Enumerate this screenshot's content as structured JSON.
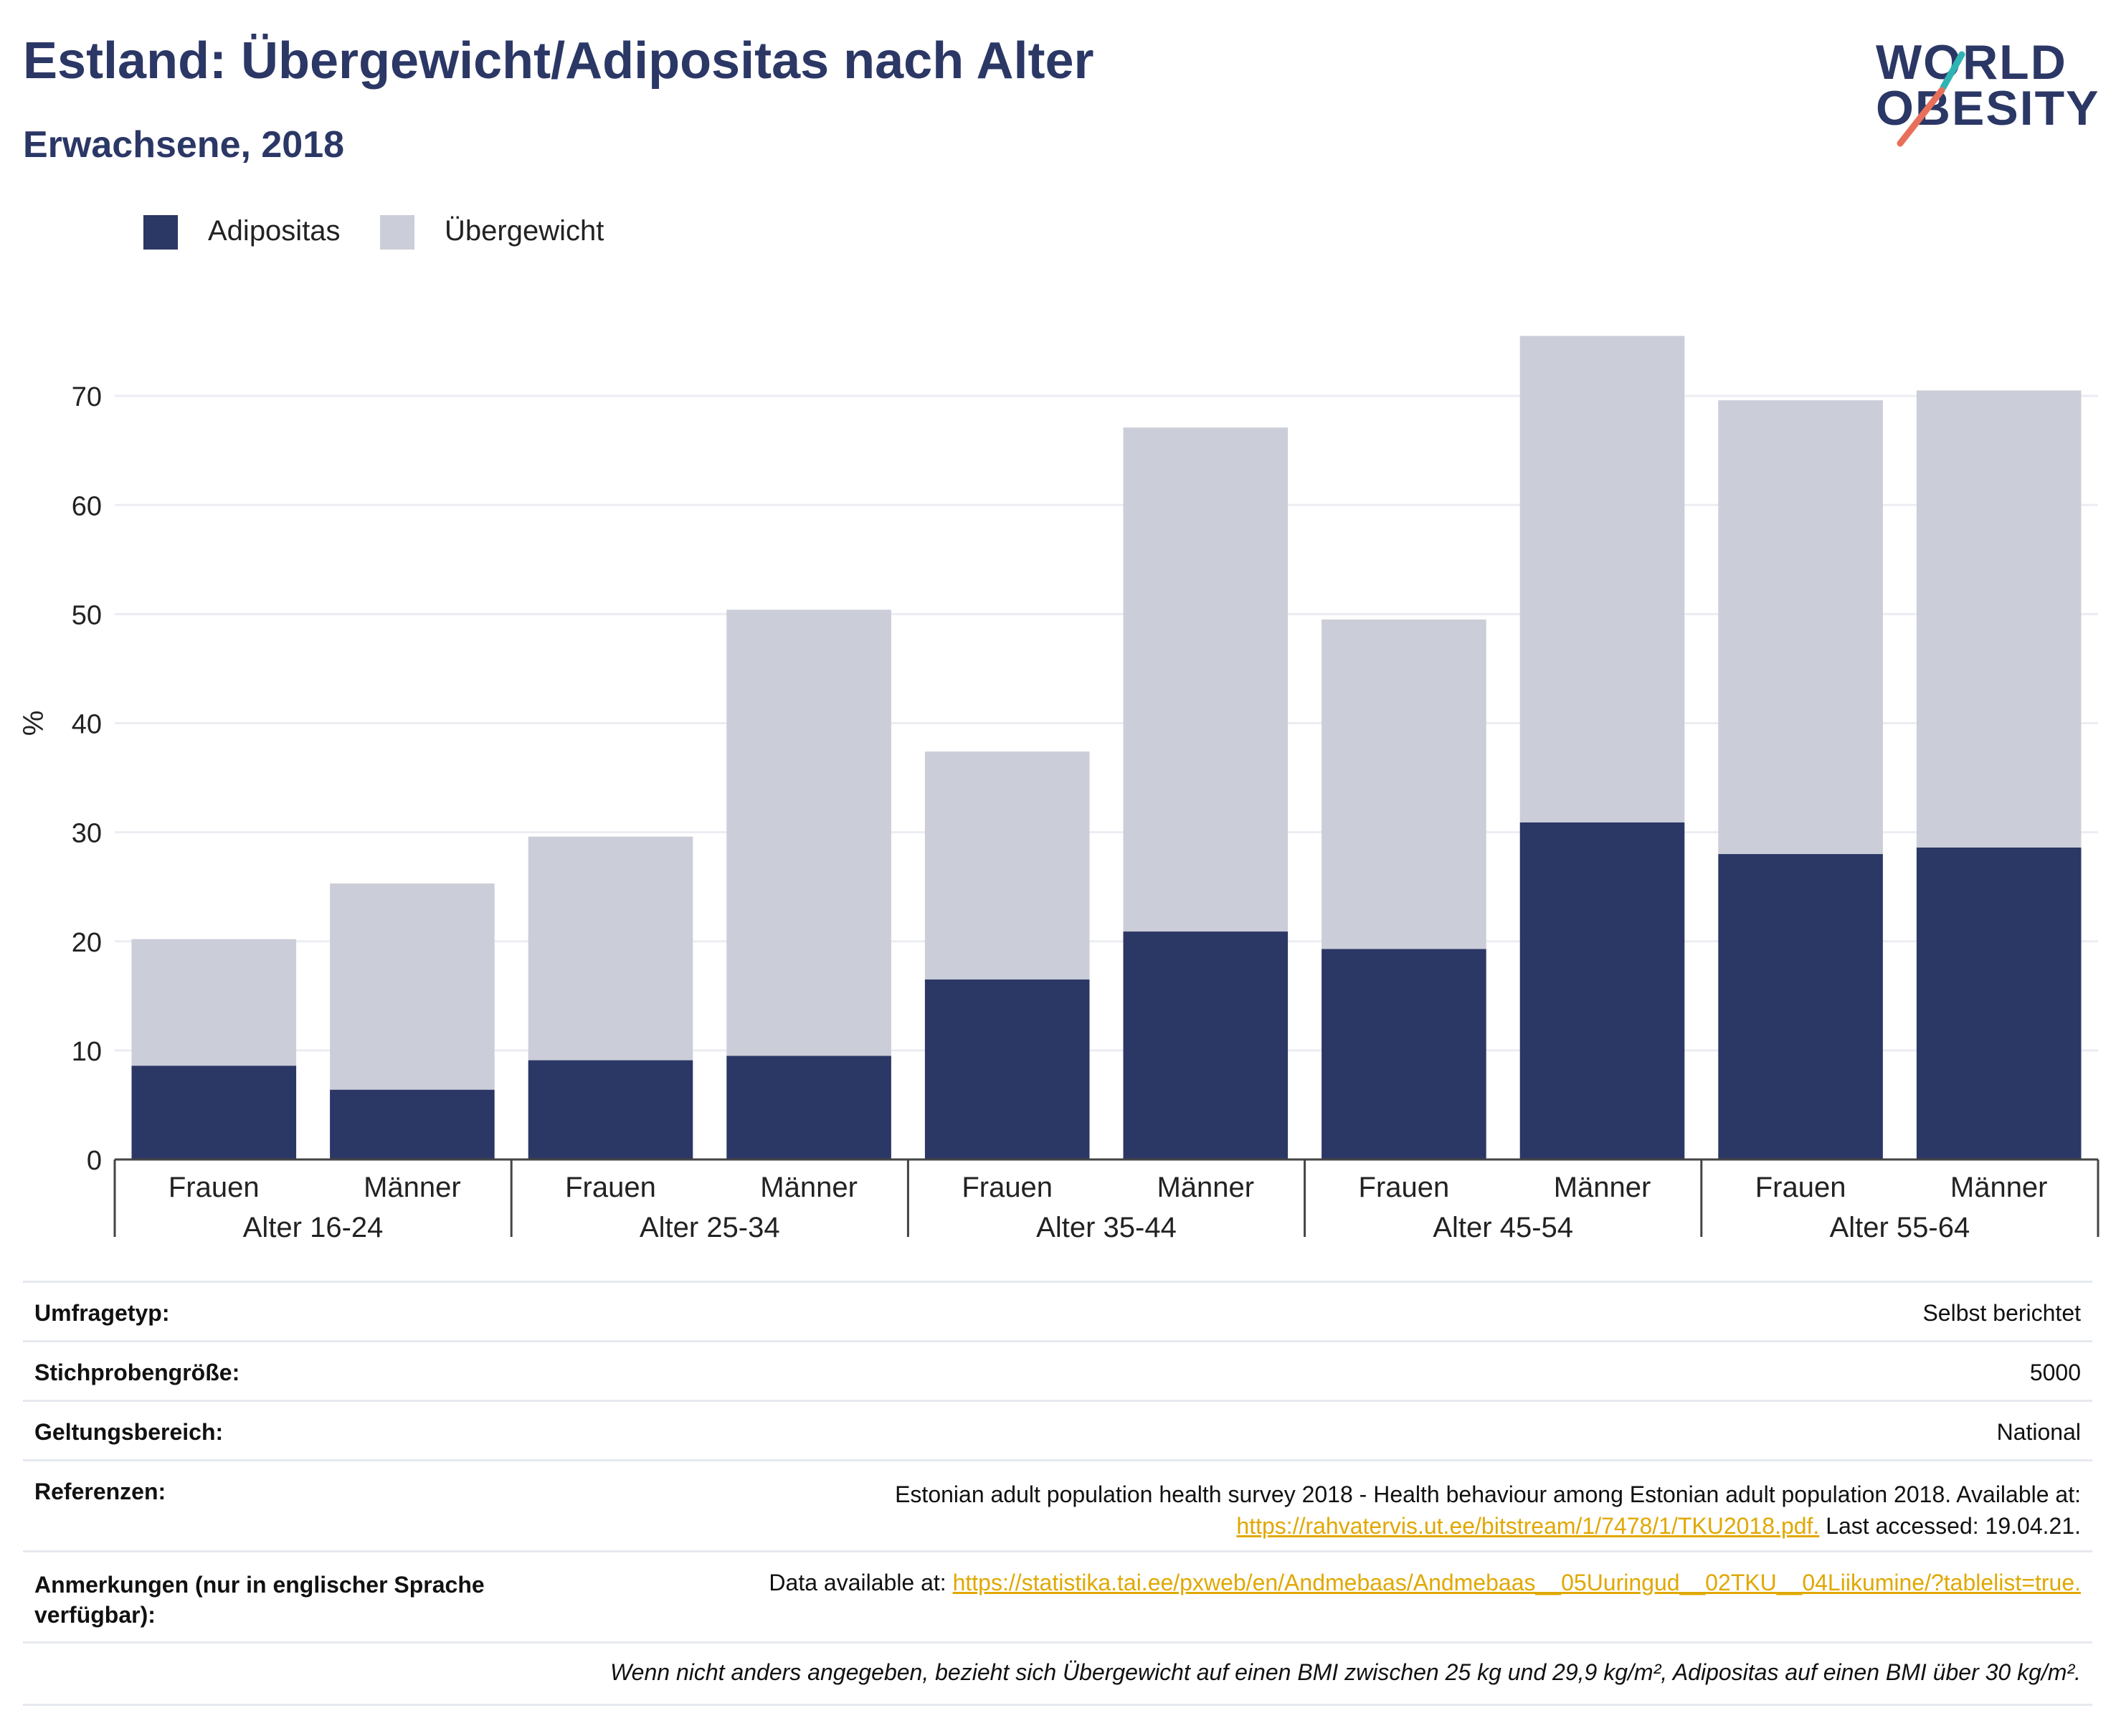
{
  "header": {
    "title": "Estland: Übergewicht/Adipositas nach Alter",
    "subtitle": "Erwachsene, 2018"
  },
  "logo": {
    "line1": "WORLD",
    "line2": "OBESITY",
    "stroke_colors": [
      "#2fb4b4",
      "#e8705a"
    ]
  },
  "legend": [
    {
      "label": "Adipositas",
      "color": "#2b3765"
    },
    {
      "label": "Übergewicht",
      "color": "#cbcdd8"
    }
  ],
  "chart_data": {
    "type": "bar",
    "stacked": true,
    "ylabel": "%",
    "ylim": [
      0,
      80
    ],
    "yticks": [
      0,
      10,
      20,
      30,
      40,
      50,
      60,
      70
    ],
    "grid": true,
    "legend_position": "top-left",
    "groups": [
      "Alter 16-24",
      "Alter 25-34",
      "Alter 35-44",
      "Alter 45-54",
      "Alter 55-64"
    ],
    "categories": [
      "Frauen",
      "Männer",
      "Frauen",
      "Männer",
      "Frauen",
      "Männer",
      "Frauen",
      "Männer",
      "Frauen",
      "Männer"
    ],
    "series": [
      {
        "name": "Adipositas",
        "color": "#2b3765",
        "values": [
          8.6,
          6.4,
          9.1,
          9.5,
          16.5,
          20.9,
          19.3,
          30.9,
          28.0,
          28.6
        ]
      },
      {
        "name": "Übergewicht",
        "color": "#cbcdd8",
        "values": [
          11.6,
          18.9,
          20.5,
          40.9,
          20.9,
          46.2,
          30.2,
          44.6,
          41.6,
          41.9
        ]
      }
    ]
  },
  "info": {
    "survey_type_label": "Umfragetyp:",
    "survey_type_value": "Selbst berichtet",
    "sample_size_label": "Stichprobengröße:",
    "sample_size_value": "5000",
    "scope_label": "Geltungsbereich:",
    "scope_value": "National",
    "references_label": "Referenzen:",
    "references_line1": "Estonian adult population health survey 2018 - Health behaviour among Estonian adult population 2018. Available at:",
    "references_link": "https://rahvatervis.ut.ee/bitstream/1/7478/1/TKU2018.pdf.",
    "references_suffix": " Last accessed: 19.04.21.",
    "notes_label_1": "Anmerkungen (nur in englischer Sprache",
    "notes_label_2": "verfügbar):",
    "notes_prefix": "Data available at: ",
    "notes_link": "https://statistika.tai.ee/pxweb/en/Andmebaas/Andmebaas__05Uuringud__02TKU__04Liikumine/?tablelist=true.",
    "footnote": "Wenn nicht anders angegeben, bezieht sich Übergewicht auf einen BMI zwischen 25 kg und 29,9 kg/m², Adipositas auf einen BMI über 30 kg/m²."
  }
}
